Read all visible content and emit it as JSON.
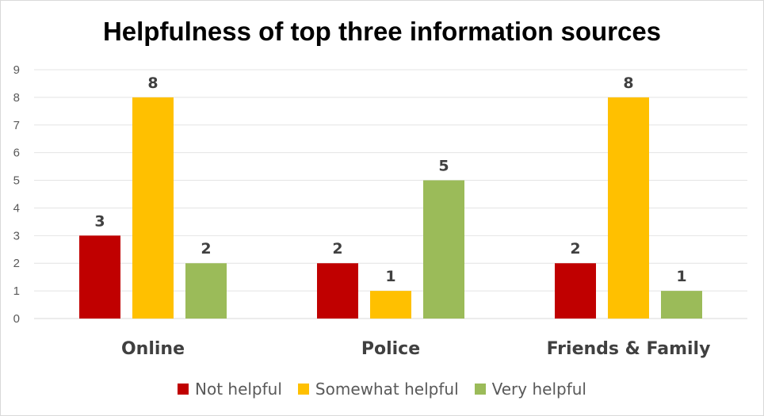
{
  "chart_data": {
    "type": "bar",
    "title": "Helpfulness of top three information sources",
    "categories": [
      "Online",
      "Police",
      "Friends & Family"
    ],
    "series": [
      {
        "name": "Not helpful",
        "values": [
          3,
          2,
          2
        ],
        "color": "#c00000"
      },
      {
        "name": "Somewhat helpful",
        "values": [
          8,
          1,
          8
        ],
        "color": "#ffc000"
      },
      {
        "name": "Very helpful",
        "values": [
          2,
          5,
          1
        ],
        "color": "#9bbb59"
      }
    ],
    "xlabel": "",
    "ylabel": "",
    "ylim": [
      0,
      9
    ],
    "yticks": [
      "0",
      "1",
      "2",
      "3",
      "4",
      "5",
      "6",
      "7",
      "8",
      "9"
    ],
    "grid": true,
    "legend_position": "bottom",
    "data_labels": true
  }
}
